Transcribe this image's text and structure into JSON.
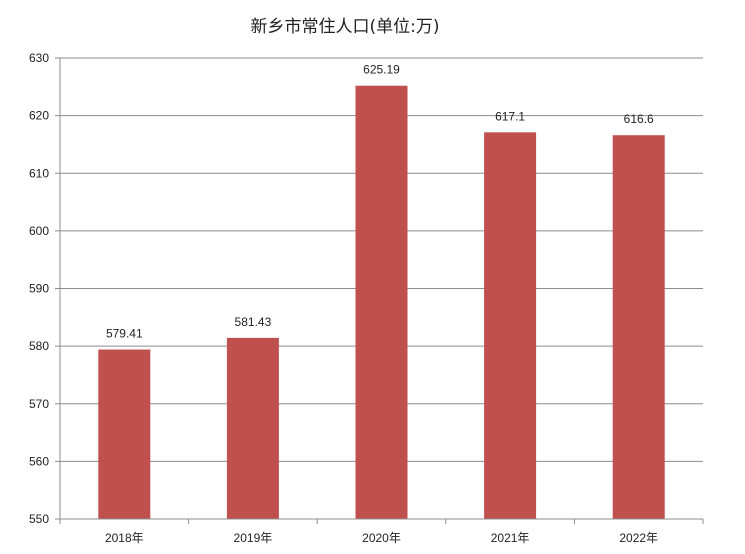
{
  "chart_data": {
    "type": "bar",
    "title": "新乡市常住人口(单位:万)",
    "categories": [
      "2018年",
      "2019年",
      "2020年",
      "2021年",
      "2022年"
    ],
    "values": [
      579.41,
      581.43,
      625.19,
      617.1,
      616.6
    ],
    "value_labels": [
      "579.41",
      "581.43",
      "625.19",
      "617.1",
      "616.6"
    ],
    "ylim": [
      550,
      630
    ],
    "yticks": [
      550,
      560,
      570,
      580,
      590,
      600,
      610,
      620,
      630
    ],
    "xlabel": "",
    "ylabel": "",
    "grid": true,
    "bar_color": "#C0504D",
    "legend": "none"
  }
}
